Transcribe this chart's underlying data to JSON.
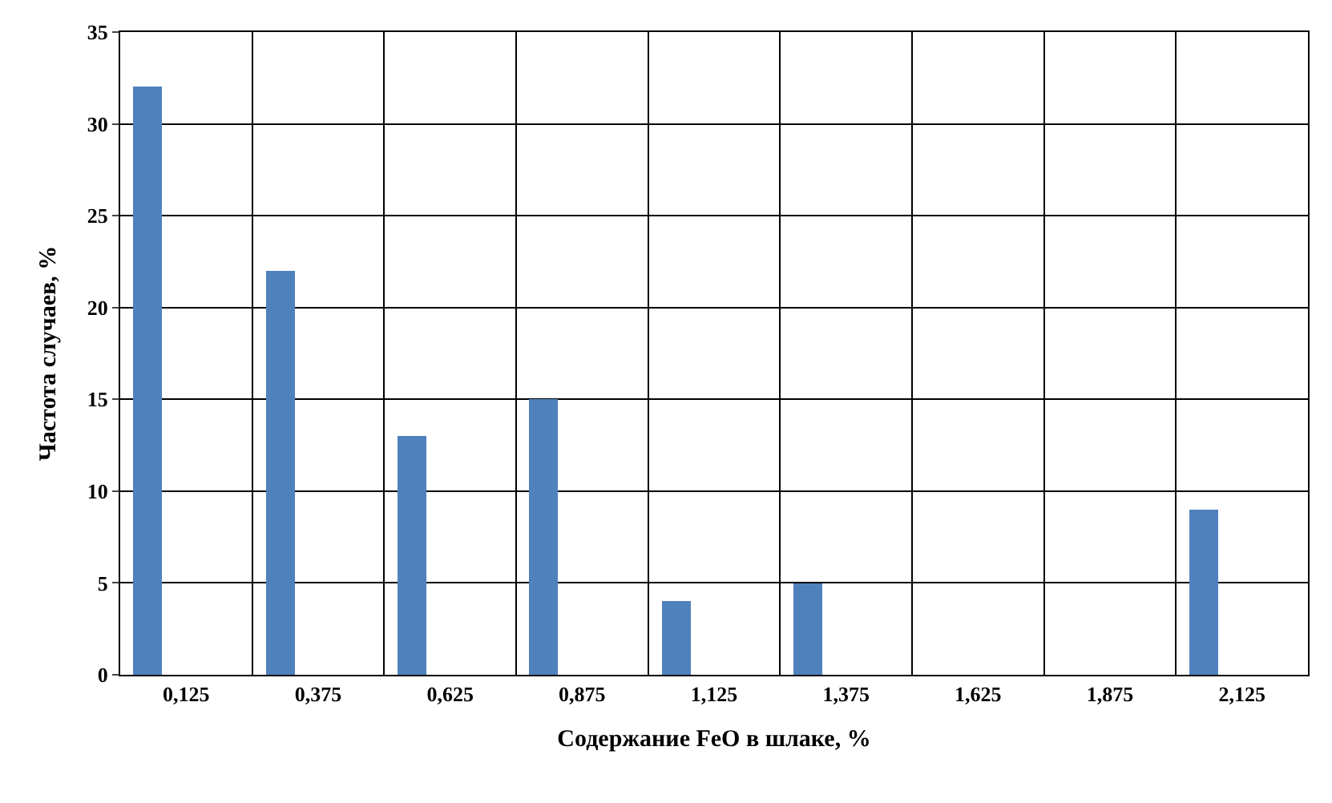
{
  "chart_data": {
    "type": "bar",
    "xlabel": "Содержание FeO в шлаке, %",
    "ylabel": "Частота случаев, %",
    "categories": [
      "0,125",
      "0,375",
      "0,625",
      "0,875",
      "1,125",
      "1,375",
      "1,625",
      "1,875",
      "2,125"
    ],
    "values": [
      32,
      22,
      13,
      15,
      4,
      5,
      0,
      0,
      9
    ],
    "color": "#4f81bd",
    "ylim": [
      0,
      35
    ],
    "yticks": [
      0,
      5,
      10,
      15,
      20,
      25,
      30,
      35
    ],
    "grid": true
  }
}
